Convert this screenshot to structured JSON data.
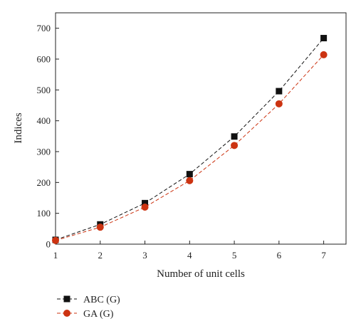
{
  "chart_data": {
    "type": "line",
    "title": "",
    "xlabel": "Number of unit cells",
    "ylabel": "Indices",
    "x": [
      1,
      2,
      3,
      4,
      5,
      6,
      7
    ],
    "xlim": [
      1,
      7.5
    ],
    "ylim": [
      0,
      750
    ],
    "xticks": [
      "1",
      "2",
      "3",
      "4",
      "5",
      "6",
      "7"
    ],
    "yticks": [
      "0",
      "100",
      "200",
      "300",
      "400",
      "500",
      "600",
      "700"
    ],
    "grid": false,
    "legend_position": "bottom-left",
    "series": [
      {
        "name": "ABC (G)",
        "values": [
          14,
          64,
          133,
          227,
          349,
          496,
          668
        ],
        "color": "#111111",
        "marker": "square",
        "line_style": "dashed"
      },
      {
        "name": "GA (G)",
        "values": [
          12,
          55,
          120,
          206,
          320,
          455,
          614
        ],
        "color": "#cc3311",
        "marker": "circle",
        "line_style": "dashed"
      }
    ]
  }
}
